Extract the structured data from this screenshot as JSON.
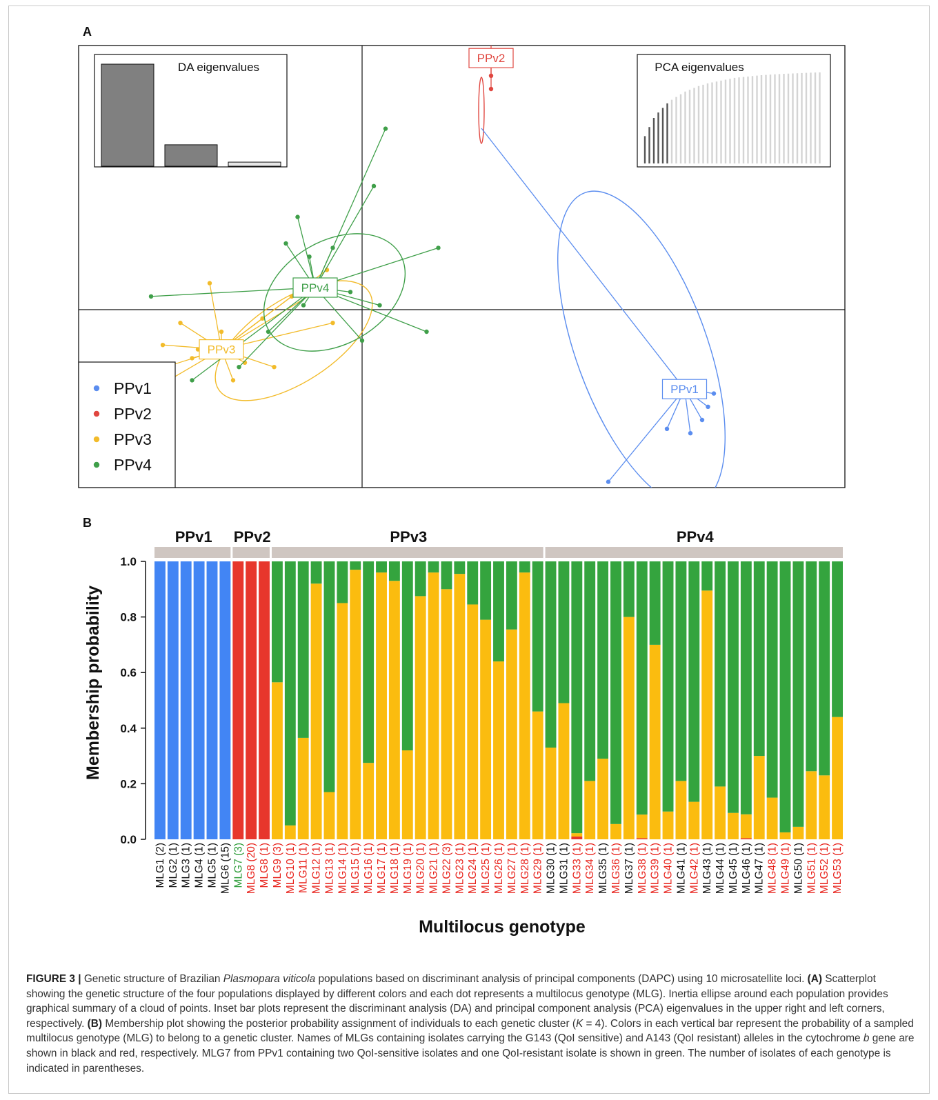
{
  "panel_a": {
    "label": "A",
    "inset_da_title": "DA eigenvalues",
    "inset_pca_title": "PCA eigenvalues",
    "legend": [
      {
        "name": "PPv1",
        "color": "#5b8def"
      },
      {
        "name": "PPv2",
        "color": "#e0463f"
      },
      {
        "name": "PPv3",
        "color": "#f2bb2a"
      },
      {
        "name": "PPv4",
        "color": "#3f9f49"
      }
    ]
  },
  "panel_b": {
    "label": "B",
    "ylabel": "Membership probability",
    "xlabel": "Multilocus genotype"
  },
  "caption": {
    "lead": "FIGURE 3 |",
    "t1": " Genetic structure of Brazilian ",
    "species": "Plasmopara viticola",
    "t2": " populations based on discriminant analysis of principal components (DAPC) using 10 microsatellite loci. ",
    "a_tag": "(A)",
    "t3": " Scatterplot showing the genetic structure of the four populations displayed by different colors and each dot represents a multilocus genotype (MLG). Inertia ellipse around each population provides graphical summary of a cloud of points. Inset bar plots represent the discriminant analysis (DA) and principal component analysis (PCA) eigenvalues in the upper right and left corners, respectively. ",
    "b_tag": "(B)",
    "t4": " Membership plot showing the posterior probability assignment of individuals to each genetic cluster (",
    "k": "K",
    "t5": " = 4). Colors in each vertical bar represent the probability of a sampled multilocus genotype (MLG) to belong to a genetic cluster. Names of MLGs containing isolates carrying the G143 (QoI sensitive) and A143 (QoI resistant) alleles in the cytochrome ",
    "gene": "b",
    "t6": " gene are shown in black and red, respectively. MLG7 from PPv1 containing two QoI-sensitive isolates and one QoI-resistant isolate is shown in green. The number of isolates of each genotype is indicated in parentheses."
  },
  "chart_data": [
    {
      "type": "scatter",
      "panel": "A",
      "title": "",
      "groups": [
        {
          "name": "PPv1",
          "color": "#5b8def",
          "centroid": [
            5.5,
            -1.8
          ],
          "points": [
            [
              6.0,
              -1.9
            ],
            [
              5.9,
              -2.2
            ],
            [
              5.8,
              -2.5
            ],
            [
              5.6,
              -2.8
            ],
            [
              5.2,
              -2.7
            ],
            [
              4.2,
              -3.9
            ]
          ]
        },
        {
          "name": "PPv2",
          "color": "#e0463f",
          "centroid": [
            2.2,
            5.7
          ],
          "points": [
            [
              2.2,
              6.7
            ],
            [
              2.2,
              5.3
            ],
            [
              2.2,
              5.0
            ]
          ]
        },
        {
          "name": "PPv3",
          "color": "#f2bb2a",
          "centroid": [
            -2.4,
            -0.9
          ],
          "points": [
            [
              -3.6,
              -1.4
            ],
            [
              -3.4,
              -0.8
            ],
            [
              -3.3,
              -1.6
            ],
            [
              -3.1,
              -0.3
            ],
            [
              -2.9,
              -1.1
            ],
            [
              -2.8,
              -0.9
            ],
            [
              -2.6,
              0.6
            ],
            [
              -2.4,
              -0.5
            ],
            [
              -2.2,
              -1.6
            ],
            [
              -2.0,
              -1.2
            ],
            [
              -1.7,
              -0.2
            ],
            [
              -1.5,
              -1.3
            ],
            [
              -1.2,
              0.3
            ],
            [
              -0.8,
              0.4
            ],
            [
              -0.6,
              0.9
            ],
            [
              -0.5,
              -0.3
            ]
          ]
        },
        {
          "name": "PPv4",
          "color": "#3f9f49",
          "centroid": [
            -0.8,
            0.5
          ],
          "points": [
            [
              -3.6,
              0.3
            ],
            [
              -2.9,
              -1.6
            ],
            [
              -2.1,
              -1.3
            ],
            [
              -1.6,
              -0.5
            ],
            [
              -1.3,
              1.5
            ],
            [
              -1.1,
              2.1
            ],
            [
              -1.0,
              0.1
            ],
            [
              -0.5,
              1.4
            ],
            [
              -0.2,
              0.4
            ],
            [
              0.0,
              -0.7
            ],
            [
              0.2,
              2.8
            ],
            [
              0.3,
              0.1
            ],
            [
              0.4,
              4.1
            ],
            [
              1.1,
              -0.5
            ],
            [
              1.3,
              1.4
            ],
            [
              -0.9,
              1.2
            ]
          ]
        }
      ]
    },
    {
      "type": "bar",
      "panel": "A-inset",
      "title": "DA eigenvalues",
      "values": [
        1.0,
        0.21,
        0.04
      ],
      "colors": [
        "#808080",
        "#808080",
        "#e6e6e6"
      ]
    },
    {
      "type": "bar",
      "panel": "A-inset",
      "title": "PCA eigenvalues",
      "n": 40,
      "retained": 6,
      "cumulative": [
        0.3,
        0.4,
        0.5,
        0.56,
        0.61,
        0.66,
        0.7,
        0.73,
        0.76,
        0.79,
        0.81,
        0.83,
        0.85,
        0.865,
        0.88,
        0.89,
        0.9,
        0.91,
        0.92,
        0.93,
        0.94,
        0.945,
        0.95,
        0.955,
        0.96,
        0.965,
        0.97,
        0.973,
        0.976,
        0.979,
        0.982,
        0.985,
        0.987,
        0.989,
        0.991,
        0.993,
        0.995,
        0.997,
        0.999,
        1.0
      ]
    },
    {
      "type": "bar",
      "panel": "B",
      "title": "",
      "stacked": true,
      "ylabel": "Membership probability",
      "xlabel": "Multilocus genotype",
      "ylim": [
        0,
        1.0
      ],
      "yticks": [
        "0.0",
        "0.2",
        "0.4",
        "0.6",
        "0.8",
        "1.0"
      ],
      "groups": [
        {
          "name": "PPv1",
          "from": 0,
          "to": 5
        },
        {
          "name": "PPv2",
          "from": 6,
          "to": 8
        },
        {
          "name": "PPv3",
          "from": 9,
          "to": 29
        },
        {
          "name": "PPv4",
          "from": 30,
          "to": 52
        }
      ],
      "series": [
        {
          "name": "PPv1",
          "color": "#4285f4"
        },
        {
          "name": "PPv2",
          "color": "#e7362c"
        },
        {
          "name": "PPv3",
          "color": "#fbbc0f"
        },
        {
          "name": "PPv4",
          "color": "#34a43e"
        }
      ],
      "label_colors": {
        "black": "#111111",
        "red": "#e8221b",
        "green": "#2e9d3a"
      },
      "categories": [
        {
          "label": "MLG1 (2)",
          "color": "black",
          "v": [
            1,
            0,
            0,
            0
          ]
        },
        {
          "label": "MLG2 (1)",
          "color": "black",
          "v": [
            1,
            0,
            0,
            0
          ]
        },
        {
          "label": "MLG3 (1)",
          "color": "black",
          "v": [
            1,
            0,
            0,
            0
          ]
        },
        {
          "label": "MLG4 (1)",
          "color": "black",
          "v": [
            1,
            0,
            0,
            0
          ]
        },
        {
          "label": "MLG5 (1)",
          "color": "black",
          "v": [
            1,
            0,
            0,
            0
          ]
        },
        {
          "label": "MLG6 (15)",
          "color": "black",
          "v": [
            1,
            0,
            0,
            0
          ]
        },
        {
          "label": "MLG7 (3)",
          "color": "green",
          "v": [
            0,
            1,
            0,
            0
          ]
        },
        {
          "label": "MLG8 (20)",
          "color": "red",
          "v": [
            0,
            1,
            0,
            0
          ]
        },
        {
          "label": "MLG8 (1)",
          "color": "red",
          "v": [
            0,
            1,
            0,
            0
          ]
        },
        {
          "label": "MLG9 (3)",
          "color": "red",
          "v": [
            0,
            0,
            0.565,
            0.435
          ]
        },
        {
          "label": "MLG10 (1)",
          "color": "red",
          "v": [
            0,
            0,
            0.05,
            0.95
          ]
        },
        {
          "label": "MLG11 (1)",
          "color": "red",
          "v": [
            0,
            0,
            0.365,
            0.635
          ]
        },
        {
          "label": "MLG12 (1)",
          "color": "red",
          "v": [
            0,
            0,
            0.92,
            0.08
          ]
        },
        {
          "label": "MLG13 (1)",
          "color": "red",
          "v": [
            0,
            0,
            0.17,
            0.83
          ]
        },
        {
          "label": "MLG14 (1)",
          "color": "red",
          "v": [
            0,
            0,
            0.85,
            0.15
          ]
        },
        {
          "label": "MLG15 (1)",
          "color": "red",
          "v": [
            0,
            0,
            0.97,
            0.03
          ]
        },
        {
          "label": "MLG16 (1)",
          "color": "red",
          "v": [
            0,
            0,
            0.275,
            0.725
          ]
        },
        {
          "label": "MLG17 (1)",
          "color": "red",
          "v": [
            0,
            0,
            0.96,
            0.04
          ]
        },
        {
          "label": "MLG18 (1)",
          "color": "red",
          "v": [
            0,
            0,
            0.93,
            0.07
          ]
        },
        {
          "label": "MLG19 (1)",
          "color": "red",
          "v": [
            0,
            0,
            0.32,
            0.68
          ]
        },
        {
          "label": "MLG20 (1)",
          "color": "red",
          "v": [
            0,
            0,
            0.875,
            0.125
          ]
        },
        {
          "label": "MLG21 (1)",
          "color": "red",
          "v": [
            0,
            0,
            0.96,
            0.04
          ]
        },
        {
          "label": "MLG22 (3)",
          "color": "red",
          "v": [
            0,
            0,
            0.9,
            0.1
          ]
        },
        {
          "label": "MLG23 (1)",
          "color": "red",
          "v": [
            0,
            0,
            0.955,
            0.045
          ]
        },
        {
          "label": "MLG24 (1)",
          "color": "red",
          "v": [
            0,
            0,
            0.845,
            0.155
          ]
        },
        {
          "label": "MLG25 (1)",
          "color": "red",
          "v": [
            0,
            0,
            0.79,
            0.21
          ]
        },
        {
          "label": "MLG26 (1)",
          "color": "red",
          "v": [
            0,
            0,
            0.64,
            0.36
          ]
        },
        {
          "label": "MLG27 (1)",
          "color": "red",
          "v": [
            0,
            0,
            0.755,
            0.245
          ]
        },
        {
          "label": "MLG28 (1)",
          "color": "red",
          "v": [
            0,
            0,
            0.96,
            0.04
          ]
        },
        {
          "label": "MLG29 (1)",
          "color": "red",
          "v": [
            0,
            0,
            0.46,
            0.54
          ]
        },
        {
          "label": "MLG30 (1)",
          "color": "black",
          "v": [
            0,
            0,
            0.33,
            0.67
          ]
        },
        {
          "label": "MLG31 (1)",
          "color": "black",
          "v": [
            0,
            0,
            0.49,
            0.51
          ]
        },
        {
          "label": "MLG33 (1)",
          "color": "red",
          "v": [
            0,
            0.01,
            0.012,
            0.978
          ]
        },
        {
          "label": "MLG34 (1)",
          "color": "red",
          "v": [
            0,
            0,
            0.21,
            0.79
          ]
        },
        {
          "label": "MLG35 (1)",
          "color": "black",
          "v": [
            0,
            0,
            0.29,
            0.71
          ]
        },
        {
          "label": "MLG36 (1)",
          "color": "red",
          "v": [
            0,
            0,
            0.055,
            0.945
          ]
        },
        {
          "label": "MLG37 (1)",
          "color": "black",
          "v": [
            0,
            0,
            0.8,
            0.2
          ]
        },
        {
          "label": "MLG38 (1)",
          "color": "red",
          "v": [
            0,
            0.004,
            0.085,
            0.911
          ]
        },
        {
          "label": "MLG39 (1)",
          "color": "red",
          "v": [
            0,
            0,
            0.7,
            0.3
          ]
        },
        {
          "label": "MLG40 (1)",
          "color": "red",
          "v": [
            0,
            0,
            0.1,
            0.9
          ]
        },
        {
          "label": "MLG41 (1)",
          "color": "black",
          "v": [
            0,
            0,
            0.21,
            0.79
          ]
        },
        {
          "label": "MLG42 (1)",
          "color": "red",
          "v": [
            0,
            0,
            0.135,
            0.865
          ]
        },
        {
          "label": "MLG43 (1)",
          "color": "black",
          "v": [
            0,
            0,
            0.895,
            0.105
          ]
        },
        {
          "label": "MLG44 (1)",
          "color": "black",
          "v": [
            0,
            0,
            0.19,
            0.81
          ]
        },
        {
          "label": "MLG45 (1)",
          "color": "black",
          "v": [
            0,
            0,
            0.095,
            0.905
          ]
        },
        {
          "label": "MLG46 (1)",
          "color": "black",
          "v": [
            0,
            0.004,
            0.086,
            0.91
          ]
        },
        {
          "label": "MLG47 (1)",
          "color": "black",
          "v": [
            0,
            0,
            0.3,
            0.7
          ]
        },
        {
          "label": "MLG48 (1)",
          "color": "red",
          "v": [
            0,
            0,
            0.15,
            0.85
          ]
        },
        {
          "label": "MLG49 (1)",
          "color": "red",
          "v": [
            0,
            0,
            0.025,
            0.975
          ]
        },
        {
          "label": "MLG50 (1)",
          "color": "black",
          "v": [
            0,
            0,
            0.045,
            0.955
          ]
        },
        {
          "label": "MLG51 (1)",
          "color": "red",
          "v": [
            0,
            0,
            0.245,
            0.755
          ]
        },
        {
          "label": "MLG52 (1)",
          "color": "red",
          "v": [
            0,
            0,
            0.23,
            0.77
          ]
        },
        {
          "label": "MLG53 (1)",
          "color": "red",
          "v": [
            0,
            0,
            0.44,
            0.56
          ]
        }
      ]
    }
  ]
}
